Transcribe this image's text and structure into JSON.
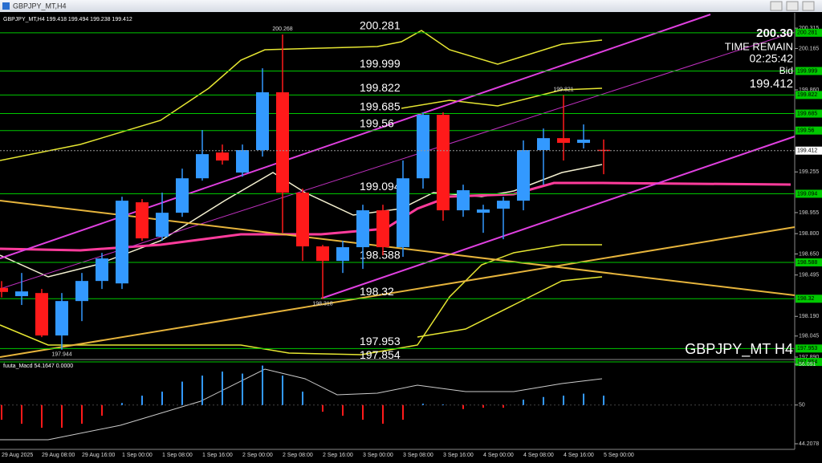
{
  "window": {
    "title": "GBPJPY_MT,H4"
  },
  "chart_data": [
    {
      "type": "candlestick",
      "header": "GBPJPY_MT,H4  199.418 199.494 199.238 199.412",
      "symbol_label": "GBPJPY_MT H4",
      "info": {
        "price": "200.30",
        "timer_label": "TIME REMAIN",
        "timer": "02:25:42",
        "bid_label": "Bid",
        "bid": 199.412
      },
      "categories": [
        "29 Aug 2025",
        null,
        "29 Aug 08:00",
        null,
        "29 Aug 16:00",
        null,
        "1 Sep 00:00",
        null,
        "1 Sep 08:00",
        null,
        "1 Sep 16:00",
        null,
        "2 Sep 00:00",
        null,
        "2 Sep 08:00",
        null,
        "2 Sep 16:00",
        null,
        "3 Sep 00:00",
        null,
        "3 Sep 08:00",
        null,
        "3 Sep 16:00",
        null,
        "4 Sep 00:00",
        null,
        "4 Sep 08:00",
        null,
        "4 Sep 16:00",
        null,
        "5 Sep 00:00"
      ],
      "open": [
        198.4,
        198.339,
        198.362,
        198.049,
        198.303,
        198.451,
        198.433,
        199.031,
        198.777,
        198.954,
        199.208,
        199.398,
        199.25,
        199.416,
        199.842,
        199.102,
        198.706,
        198.599,
        198.7,
        198.972,
        198.7,
        199.208,
        199.676,
        198.972,
        198.954,
        198.984,
        199.043,
        199.416,
        199.504,
        199.469,
        199.418
      ],
      "high": [
        198.45,
        198.51,
        198.392,
        198.362,
        198.51,
        198.658,
        199.072,
        199.055,
        199.102,
        199.279,
        199.564,
        199.457,
        199.457,
        200.019,
        200.268,
        199.132,
        198.717,
        198.747,
        199.013,
        199.013,
        199.339,
        199.694,
        199.694,
        199.161,
        199.013,
        199.072,
        199.487,
        199.575,
        199.821,
        199.605,
        199.494
      ],
      "low": [
        198.33,
        198.274,
        198.037,
        197.944,
        198.155,
        198.392,
        198.392,
        198.747,
        198.747,
        198.924,
        199.191,
        199.309,
        199.22,
        199.368,
        198.806,
        198.599,
        198.318,
        198.51,
        198.54,
        198.64,
        198.629,
        199.132,
        198.895,
        198.924,
        198.806,
        198.759,
        198.972,
        199.161,
        199.339,
        199.428,
        199.238
      ],
      "close": [
        198.37,
        198.374,
        198.049,
        198.303,
        198.451,
        198.617,
        199.043,
        198.765,
        198.954,
        199.208,
        199.386,
        199.339,
        199.416,
        199.842,
        199.102,
        198.706,
        198.599,
        198.7,
        198.972,
        198.7,
        199.208,
        199.676,
        198.972,
        199.12,
        198.978,
        199.043,
        199.416,
        199.504,
        199.469,
        199.493,
        199.412
      ],
      "up_color": "#3399ff",
      "down_color": "#ff1a1a",
      "extremes": [
        200.268,
        199.821,
        198.318,
        197.944
      ],
      "levels": [
        200.281,
        199.999,
        199.822,
        199.685,
        199.56,
        199.094,
        198.588,
        198.32,
        197.953,
        197.854
      ],
      "level_color": "#00c800",
      "ylim": [
        197.878,
        200.416
      ],
      "yticks": [
        200.315,
        200.165,
        {
          "value": 199.86,
          "label": "199.860"
        },
        199.255,
        198.955,
        {
          "value": 198.8,
          "label": "198.800"
        },
        {
          "value": 198.65,
          "label": "198.650"
        },
        198.495,
        {
          "value": 198.19,
          "label": "198.190"
        },
        198.045,
        {
          "value": 197.89,
          "label": "197.890"
        }
      ]
    },
    {
      "type": "bar",
      "title": "fuuta_Macd 54.1647  0.0000",
      "values": [
        47.8,
        47.2,
        46.6,
        46.6,
        47.2,
        48.4,
        50.3,
        51.4,
        52.0,
        53.5,
        54.4,
        55.0,
        54.7,
        55.9,
        54.4,
        52.0,
        49.0,
        48.4,
        47.8,
        47.2,
        47.8,
        50.2,
        50.1,
        49.4,
        49.6,
        49.6,
        50.8,
        51.2,
        51.4,
        51.7,
        51.4
      ],
      "baseline": 50,
      "up_color": "#3399ff",
      "down_color": "#ff1a1a",
      "ylim": [
        43.37,
        56.21
      ],
      "yticks": [
        56.091,
        50,
        44.2078
      ]
    }
  ]
}
